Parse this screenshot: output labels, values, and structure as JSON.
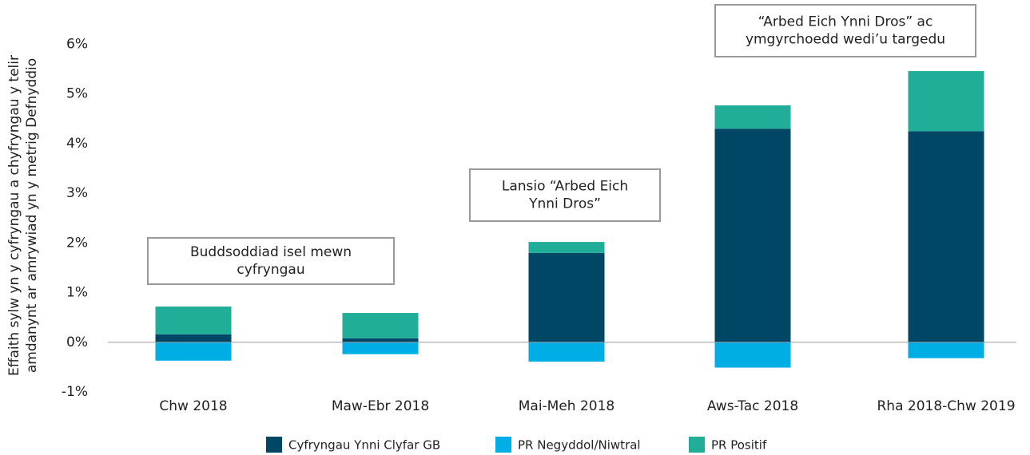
{
  "chart_data": {
    "type": "stacked_bar",
    "ylabel": [
      "Effaith sylw yn y cyfryngau a chyfryngau y telir",
      "amdanynt ar amrywiad yn y metrig Defnyddio"
    ],
    "categories": [
      "Chw 2018",
      "Maw-Ebr 2018",
      "Mai-Meh 2018",
      "Aws-Tac 2018",
      "Rha 2018-Chw 2019"
    ],
    "series": [
      {
        "name": "Cyfryngau Ynni Clyfar GB",
        "color": "#004766",
        "values": [
          0.16,
          0.08,
          1.8,
          4.3,
          4.25
        ]
      },
      {
        "name": "PR Negyddol/Niwtral",
        "color": "#00aee6",
        "values": [
          -0.37,
          -0.24,
          -0.39,
          -0.51,
          -0.32
        ]
      },
      {
        "name": "PR Positif",
        "color": "#20ae99",
        "values": [
          0.56,
          0.51,
          0.22,
          0.47,
          1.21
        ]
      }
    ],
    "ylim": [
      -1,
      6.2
    ],
    "yticks": [
      {
        "value": -1,
        "label": "-1%"
      },
      {
        "value": 0,
        "label": "0%"
      },
      {
        "value": 1,
        "label": "1%"
      },
      {
        "value": 2,
        "label": "2%"
      },
      {
        "value": 3,
        "label": "3%"
      },
      {
        "value": 4,
        "label": "4%"
      },
      {
        "value": 5,
        "label": "5%"
      },
      {
        "value": 6,
        "label": "6%"
      }
    ],
    "annotations": [
      {
        "text": [
          "Buddsoddiad isel mewn",
          "cyfryngau"
        ]
      },
      {
        "text": [
          "Lansio “Arbed Eich",
          "Ynni Dros”"
        ]
      },
      {
        "text": [
          "“Arbed Eich Ynni Dros” ac",
          "ymgyrchoedd wedi’u targedu"
        ]
      }
    ],
    "legend": "bottom"
  }
}
